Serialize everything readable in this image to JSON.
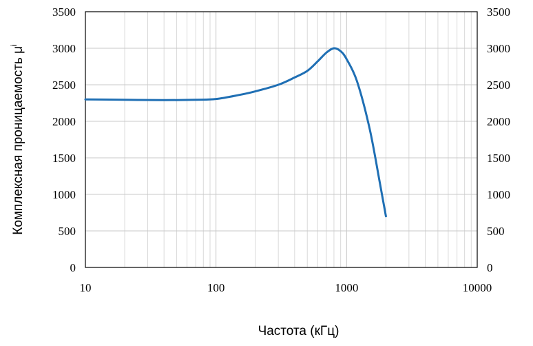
{
  "chart_data": {
    "type": "line",
    "title": "",
    "xlabel": "Частота (кГц)",
    "ylabel": "Комплексная проницаемость μ",
    "ylabel_superscript": "i",
    "x_scale": "log",
    "xlim": [
      10,
      10000
    ],
    "ylim": [
      0,
      3500
    ],
    "x_ticks": [
      10,
      100,
      1000,
      10000
    ],
    "x_tick_labels": [
      "10",
      "100",
      "1000",
      "10000"
    ],
    "y_ticks": [
      0,
      500,
      1000,
      1500,
      2000,
      2500,
      3000,
      3500
    ],
    "y_tick_labels": [
      "0",
      "500",
      "1000",
      "1500",
      "2000",
      "2500",
      "3000",
      "3500"
    ],
    "secondary_y_axis": true,
    "grid": true,
    "series": [
      {
        "color": "#1f6fb4",
        "x": [
          10,
          20,
          40,
          70,
          100,
          150,
          200,
          300,
          400,
          500,
          600,
          700,
          800,
          900,
          1000,
          1200,
          1500,
          1800,
          2000
        ],
        "y": [
          2300,
          2295,
          2290,
          2295,
          2305,
          2360,
          2410,
          2500,
          2600,
          2690,
          2820,
          2940,
          3000,
          2960,
          2850,
          2550,
          1900,
          1150,
          700
        ]
      }
    ]
  }
}
